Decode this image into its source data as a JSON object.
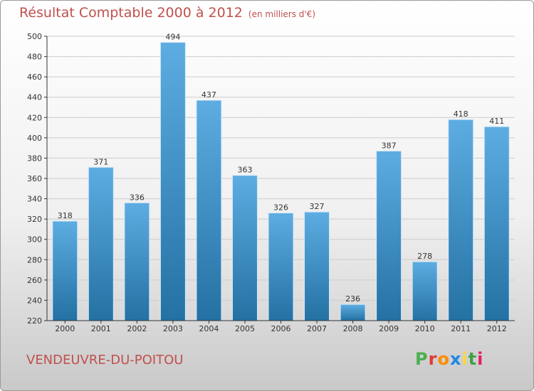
{
  "title": "Résultat Comptable 2000 à 2012",
  "subtitle": "(en milliers d'€)",
  "place": "VENDEUVRE-DU-POITOU",
  "logo": {
    "letters": [
      "P",
      "r",
      "o",
      "x",
      "i",
      "t",
      "i"
    ],
    "colors": [
      "#4caf50",
      "#e53935",
      "#fb8c00",
      "#1e88e5",
      "#fdd835",
      "#43a047",
      "#e91e63"
    ]
  },
  "colors": {
    "title": "#c0504d",
    "bar_top": "#5dade2",
    "bar_bottom": "#2471a3",
    "axis": "#333333",
    "grid": "#cccccc"
  },
  "chart_data": {
    "type": "bar",
    "categories": [
      "2000",
      "2001",
      "2002",
      "2003",
      "2004",
      "2005",
      "2006",
      "2007",
      "2008",
      "2009",
      "2010",
      "2011",
      "2012"
    ],
    "values": [
      318,
      371,
      336,
      494,
      437,
      363,
      326,
      327,
      236,
      387,
      278,
      418,
      411
    ],
    "ylim": [
      220,
      500
    ],
    "yticks": [
      220,
      240,
      260,
      280,
      300,
      320,
      340,
      360,
      380,
      400,
      420,
      440,
      460,
      480,
      500
    ],
    "grid": true
  }
}
